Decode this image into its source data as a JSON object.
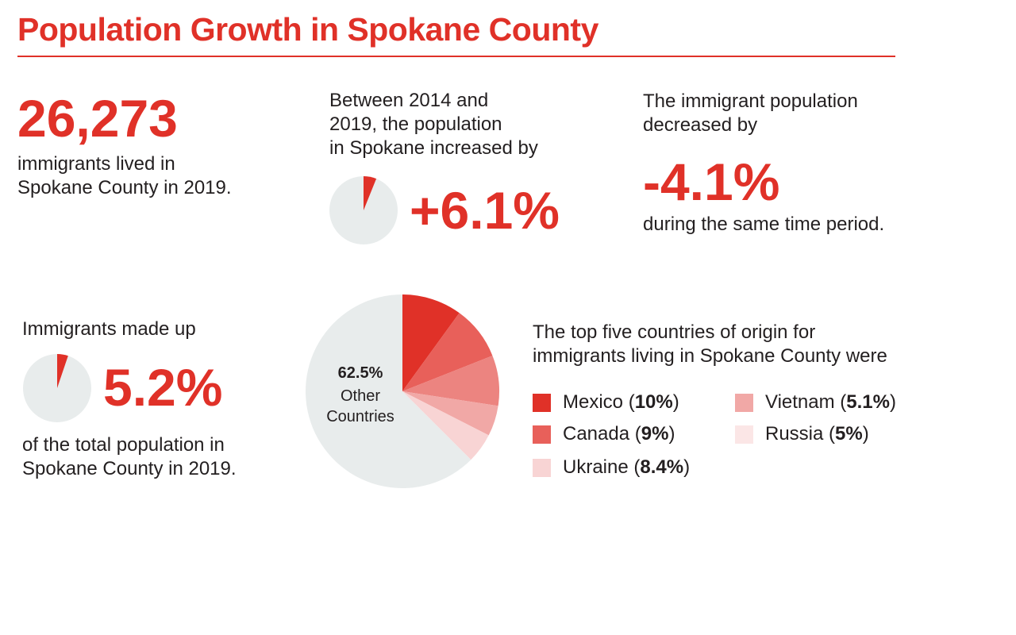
{
  "title": "Population Growth in Spokane County",
  "stat_immigrants": {
    "value": "26,273",
    "description_line1": "immigrants lived in",
    "description_line2": "Spokane County in 2019."
  },
  "stat_population_growth": {
    "intro_line1": "Between 2014 and",
    "intro_line2": "2019, the population",
    "intro_line3": "in Spokane increased by",
    "value": "+6.1%",
    "pie_fraction": 0.061
  },
  "stat_immigrant_change": {
    "intro_line1": "The immigrant population",
    "intro_line2": "decreased by",
    "value": "-4.1%",
    "after": "during the same time period."
  },
  "stat_share": {
    "intro": "Immigrants made up",
    "value": "5.2%",
    "pie_fraction": 0.052,
    "after_line1": "of the total population in",
    "after_line2": "Spokane County in 2019."
  },
  "colors": {
    "accent": "#e03128",
    "pie_background": "#e8ecec"
  },
  "chart_data": {
    "type": "pie",
    "heading_line1": "The top five countries of origin for",
    "heading_line2": "immigrants living in Spokane County were",
    "categories": [
      "Mexico",
      "Canada",
      "Ukraine",
      "Vietnam",
      "Russia",
      "Other Countries"
    ],
    "values": [
      10,
      9,
      8.4,
      5.1,
      5,
      62.5
    ],
    "slices": [
      {
        "label": "Mexico",
        "value": 10,
        "display": "10%",
        "color": "#e03128"
      },
      {
        "label": "Canada",
        "value": 9,
        "display": "9%",
        "color": "#e8605a"
      },
      {
        "label": "Ukraine",
        "value": 8.4,
        "display": "8.4%",
        "color": "#ec8480"
      },
      {
        "label": "Vietnam",
        "value": 5.1,
        "display": "5.1%",
        "color": "#f1a8a6"
      },
      {
        "label": "Russia",
        "value": 5,
        "display": "5%",
        "color": "#f8d4d4"
      },
      {
        "label": "Other Countries",
        "value": 62.5,
        "display": "62.5%",
        "color": "#e8ecec"
      }
    ],
    "other_label_value": "62.5%",
    "other_label_line1": "Other",
    "other_label_line2": "Countries",
    "legend": [
      {
        "name": "Mexico",
        "open": " (",
        "pct": "10%",
        "close": ")",
        "color": "#e03128"
      },
      {
        "name": "Canada",
        "open": " (",
        "pct": "9%",
        "close": ")",
        "color": "#e8605a"
      },
      {
        "name": "Ukraine",
        "open": " (",
        "pct": "8.4%",
        "close": ")",
        "color": "#f8d4d4"
      },
      {
        "name": "Vietnam",
        "open": " (",
        "pct": "5.1%",
        "close": ")",
        "color": "#f1a8a6"
      },
      {
        "name": "Russia",
        "open": " (",
        "pct": "5%",
        "close": ")",
        "color": "#fbe6e6"
      }
    ]
  }
}
